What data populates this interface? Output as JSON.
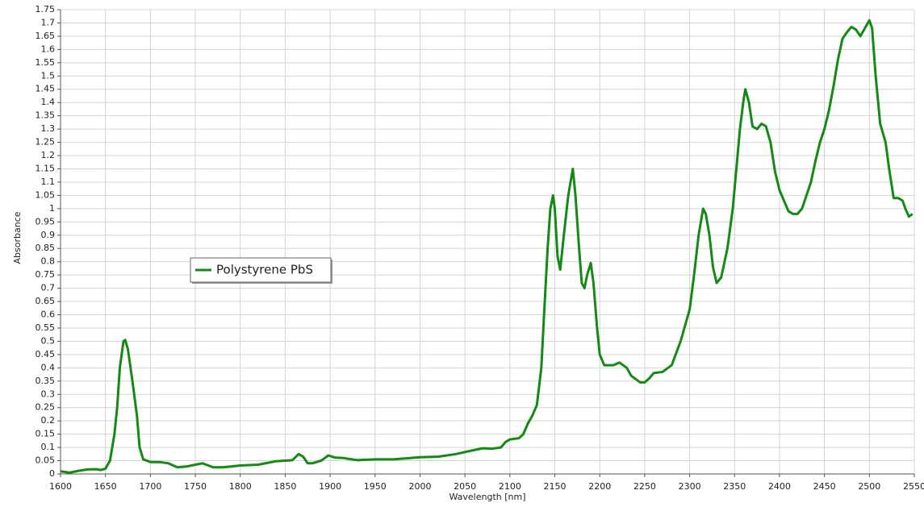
{
  "chart_data": {
    "type": "line",
    "x_label": "Wavelength [nm]",
    "y_label": "Absorbance",
    "xlim": [
      1600,
      2550
    ],
    "ylim": [
      0,
      1.75
    ],
    "xticks": [
      1600,
      1650,
      1700,
      1750,
      1800,
      1850,
      1900,
      1950,
      2000,
      2050,
      2100,
      2150,
      2200,
      2250,
      2300,
      2350,
      2400,
      2450,
      2500,
      2550
    ],
    "yticks": [
      0,
      0.05,
      0.1,
      0.15,
      0.2,
      0.25,
      0.3,
      0.35,
      0.4,
      0.45,
      0.5,
      0.55,
      0.6,
      0.65,
      0.7,
      0.75,
      0.8,
      0.85,
      0.9,
      0.95,
      1,
      1.05,
      1.1,
      1.15,
      1.2,
      1.25,
      1.3,
      1.35,
      1.4,
      1.45,
      1.5,
      1.55,
      1.6,
      1.65,
      1.7,
      1.75
    ],
    "grid": true,
    "legend_position": "left",
    "x": [
      1600,
      1610,
      1620,
      1630,
      1640,
      1645,
      1650,
      1655,
      1660,
      1663,
      1666,
      1670,
      1672,
      1675,
      1680,
      1685,
      1688,
      1692,
      1700,
      1710,
      1720,
      1730,
      1740,
      1750,
      1758,
      1770,
      1780,
      1790,
      1800,
      1820,
      1840,
      1850,
      1858,
      1865,
      1870,
      1875,
      1880,
      1890,
      1898,
      1905,
      1915,
      1930,
      1950,
      1970,
      2000,
      2020,
      2040,
      2060,
      2070,
      2080,
      2090,
      2095,
      2100,
      2110,
      2115,
      2120,
      2125,
      2130,
      2135,
      2138,
      2142,
      2145,
      2148,
      2150,
      2153,
      2156,
      2160,
      2165,
      2170,
      2173,
      2177,
      2180,
      2183,
      2186,
      2190,
      2193,
      2197,
      2200,
      2205,
      2215,
      2222,
      2230,
      2235,
      2245,
      2250,
      2255,
      2260,
      2270,
      2280,
      2290,
      2300,
      2305,
      2310,
      2315,
      2318,
      2322,
      2326,
      2330,
      2335,
      2342,
      2348,
      2352,
      2356,
      2360,
      2362,
      2366,
      2370,
      2375,
      2380,
      2385,
      2390,
      2395,
      2400,
      2405,
      2410,
      2415,
      2420,
      2425,
      2430,
      2435,
      2440,
      2445,
      2450,
      2455,
      2460,
      2465,
      2470,
      2475,
      2480,
      2485,
      2490,
      2495,
      2500,
      2503,
      2507,
      2512,
      2518,
      2522,
      2527,
      2532,
      2537,
      2540,
      2544,
      2548
    ],
    "series": [
      {
        "name": "Polystyrene PbS",
        "color": "#138a13",
        "values": [
          0.01,
          0.005,
          0.012,
          0.017,
          0.018,
          0.015,
          0.02,
          0.05,
          0.15,
          0.25,
          0.4,
          0.5,
          0.505,
          0.47,
          0.35,
          0.22,
          0.1,
          0.055,
          0.045,
          0.045,
          0.04,
          0.025,
          0.028,
          0.035,
          0.04,
          0.025,
          0.025,
          0.028,
          0.032,
          0.035,
          0.048,
          0.05,
          0.052,
          0.075,
          0.065,
          0.04,
          0.04,
          0.05,
          0.07,
          0.062,
          0.06,
          0.052,
          0.055,
          0.055,
          0.063,
          0.065,
          0.075,
          0.09,
          0.097,
          0.095,
          0.1,
          0.12,
          0.13,
          0.135,
          0.15,
          0.19,
          0.22,
          0.26,
          0.4,
          0.6,
          0.85,
          1.0,
          1.05,
          1.0,
          0.82,
          0.77,
          0.9,
          1.05,
          1.15,
          1.05,
          0.85,
          0.72,
          0.7,
          0.75,
          0.795,
          0.72,
          0.55,
          0.45,
          0.41,
          0.41,
          0.42,
          0.4,
          0.37,
          0.345,
          0.345,
          0.36,
          0.38,
          0.385,
          0.41,
          0.5,
          0.62,
          0.75,
          0.9,
          1.0,
          0.98,
          0.9,
          0.78,
          0.72,
          0.74,
          0.85,
          1.0,
          1.15,
          1.3,
          1.41,
          1.45,
          1.4,
          1.31,
          1.3,
          1.32,
          1.31,
          1.25,
          1.14,
          1.07,
          1.03,
          0.99,
          0.98,
          0.98,
          1.0,
          1.05,
          1.1,
          1.18,
          1.25,
          1.3,
          1.37,
          1.46,
          1.56,
          1.64,
          1.665,
          1.685,
          1.675,
          1.65,
          1.68,
          1.71,
          1.68,
          1.5,
          1.32,
          1.25,
          1.15,
          1.04,
          1.04,
          1.03,
          1.0,
          0.97,
          0.98
        ]
      }
    ]
  }
}
